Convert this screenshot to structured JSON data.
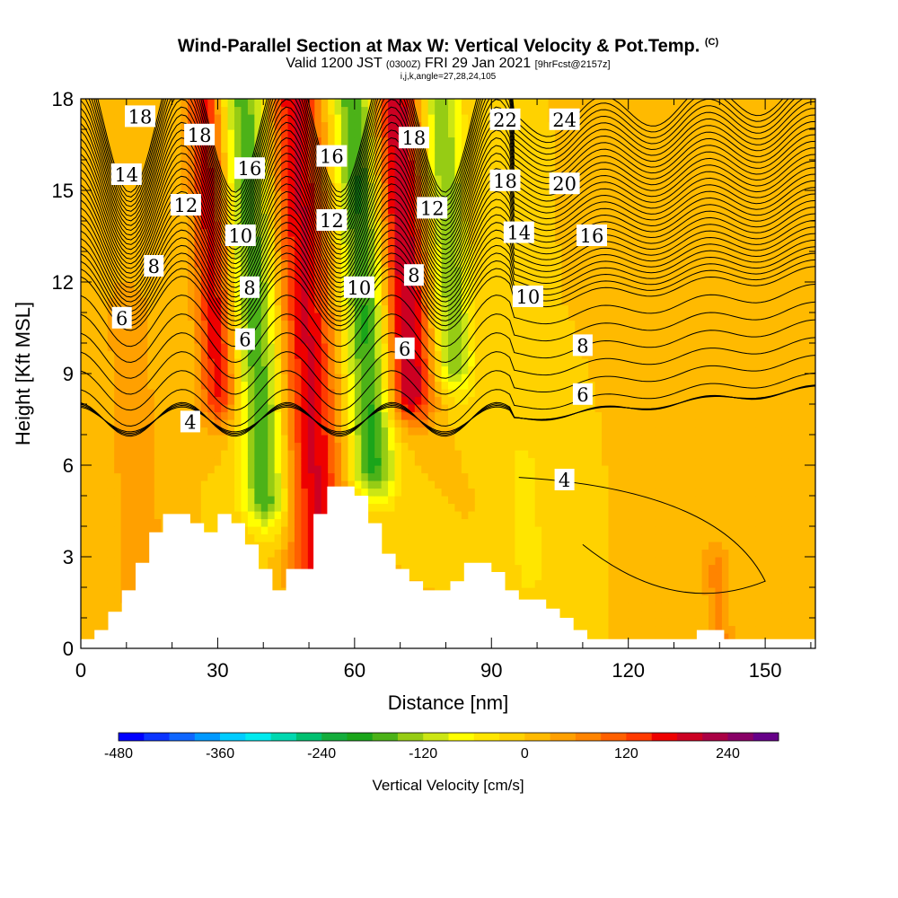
{
  "header": {
    "title": "Wind-Parallel Section at Max W: Vertical Velocity & Pot.Temp.",
    "title_mark": "(C)",
    "subtitle_a": "Valid 1200 JST",
    "subtitle_b": "(0300Z)",
    "subtitle_c": "FRI 29 Jan 2021",
    "subtitle_d": "[9hrFcst@2157z]",
    "note": "i,j,k,angle=27,28,24,105"
  },
  "chart_data": {
    "type": "heatmap",
    "title": "Wind-Parallel Section at Max W: Vertical Velocity & Pot.Temp.",
    "xlabel": "Distance [nm]",
    "ylabel": "Height [Kft MSL]",
    "xlim": [
      0,
      161
    ],
    "ylim": [
      0,
      18
    ],
    "x_ticks": [
      0,
      30,
      60,
      90,
      120,
      150
    ],
    "y_ticks": [
      0,
      3,
      6,
      9,
      12,
      15,
      18
    ],
    "background_velocity_cm_s": 0,
    "updraft_downdraft_bands": [
      {
        "x_center": 10,
        "half_width": 5,
        "y_bottom": 0,
        "y_top": 11,
        "w_cm_s": 60
      },
      {
        "x_center": 29,
        "half_width": 4,
        "y_bottom": 8.5,
        "y_top": 18,
        "w_cm_s": 170
      },
      {
        "x_center": 38,
        "half_width": 5,
        "y_bottom": 5,
        "y_top": 18,
        "w_cm_s": -175
      },
      {
        "x_center": 49,
        "half_width": 6,
        "y_bottom": 2.5,
        "y_top": 18,
        "w_cm_s": 185
      },
      {
        "x_center": 62,
        "half_width": 5,
        "y_bottom": 6,
        "y_top": 18,
        "w_cm_s": -190
      },
      {
        "x_center": 71,
        "half_width": 5,
        "y_bottom": 8.5,
        "y_top": 18,
        "w_cm_s": 215
      },
      {
        "x_center": 81,
        "half_width": 4,
        "y_bottom": 9.5,
        "y_top": 18,
        "w_cm_s": -150
      },
      {
        "x_center": 95,
        "half_width": 3,
        "y_bottom": 3,
        "y_top": 5.5,
        "w_cm_s": -60
      },
      {
        "x_center": 136,
        "half_width": 3,
        "y_bottom": 0,
        "y_top": 2.5,
        "w_cm_s": 70
      }
    ],
    "terrain_height_kft": {
      "x": [
        0,
        3,
        6,
        9,
        12,
        15,
        18,
        21,
        24,
        27,
        30,
        33,
        36,
        39,
        42,
        45,
        48,
        51,
        54,
        57,
        60,
        63,
        66,
        69,
        72,
        75,
        78,
        81,
        84,
        87,
        90,
        93,
        96,
        99,
        102,
        105,
        108,
        111,
        114,
        117,
        120,
        123,
        126,
        129,
        132,
        135,
        138,
        141,
        144,
        147,
        150,
        153,
        156,
        159,
        161
      ],
      "y": [
        0.3,
        0.6,
        1.2,
        1.9,
        2.8,
        3.8,
        4.4,
        4.4,
        4.1,
        3.8,
        4.4,
        4.1,
        3.4,
        2.6,
        1.9,
        2.6,
        2.6,
        4.4,
        5.3,
        5.3,
        5.0,
        4.1,
        3.1,
        2.6,
        2.2,
        1.9,
        1.9,
        2.2,
        2.8,
        2.8,
        2.5,
        1.9,
        1.6,
        1.6,
        1.3,
        1.0,
        0.6,
        0.3,
        0.3,
        0.3,
        0.3,
        0.3,
        0.3,
        0.3,
        0.3,
        0.6,
        0.6,
        0.3,
        0.3,
        0.3,
        0.3,
        0.3,
        0.3,
        0.3,
        0.3
      ]
    },
    "potential_temperature_contours": {
      "levels": [
        4,
        6,
        8,
        10,
        12,
        14,
        16,
        18,
        20,
        22,
        24
      ],
      "labels": [
        {
          "text": "18",
          "x": 13,
          "y": 17.4
        },
        {
          "text": "18",
          "x": 26,
          "y": 16.8
        },
        {
          "text": "14",
          "x": 10,
          "y": 15.5
        },
        {
          "text": "16",
          "x": 37,
          "y": 15.7
        },
        {
          "text": "16",
          "x": 55,
          "y": 16.1
        },
        {
          "text": "18",
          "x": 73,
          "y": 16.7
        },
        {
          "text": "22",
          "x": 93,
          "y": 17.3
        },
        {
          "text": "24",
          "x": 106,
          "y": 17.3
        },
        {
          "text": "18",
          "x": 93,
          "y": 15.3
        },
        {
          "text": "20",
          "x": 106,
          "y": 15.2
        },
        {
          "text": "12",
          "x": 23,
          "y": 14.5
        },
        {
          "text": "12",
          "x": 55,
          "y": 14.0
        },
        {
          "text": "12",
          "x": 77,
          "y": 14.4
        },
        {
          "text": "10",
          "x": 35,
          "y": 13.5
        },
        {
          "text": "14",
          "x": 96,
          "y": 13.6
        },
        {
          "text": "16",
          "x": 112,
          "y": 13.5
        },
        {
          "text": "8",
          "x": 16,
          "y": 12.5
        },
        {
          "text": "8",
          "x": 37,
          "y": 11.8
        },
        {
          "text": "10",
          "x": 61,
          "y": 11.8
        },
        {
          "text": "8",
          "x": 73,
          "y": 12.2
        },
        {
          "text": "10",
          "x": 98,
          "y": 11.5
        },
        {
          "text": "6",
          "x": 9,
          "y": 10.8
        },
        {
          "text": "6",
          "x": 36,
          "y": 10.1
        },
        {
          "text": "6",
          "x": 71,
          "y": 9.8
        },
        {
          "text": "8",
          "x": 110,
          "y": 9.9
        },
        {
          "text": "6",
          "x": 110,
          "y": 8.3
        },
        {
          "text": "4",
          "x": 24,
          "y": 7.4
        },
        {
          "text": "4",
          "x": 106,
          "y": 5.5
        }
      ]
    },
    "colorbar": {
      "label": "Vertical Velocity [cm/s]",
      "min": -480,
      "max": 300,
      "step": 30,
      "tick_values": [
        -480,
        -360,
        -240,
        -120,
        0,
        120,
        240
      ],
      "tick_labels": [
        "-480",
        "-360",
        "-240",
        "-120",
        "0",
        "120",
        "240"
      ],
      "colors": [
        "#0000ff",
        "#0b34ff",
        "#0f66ff",
        "#0099ff",
        "#00ccff",
        "#00eaee",
        "#00d8b0",
        "#00c070",
        "#14ad3c",
        "#1aa51a",
        "#4cb218",
        "#96cc14",
        "#cce614",
        "#ffff00",
        "#ffe600",
        "#ffd200",
        "#ffba00",
        "#ffa000",
        "#ff8400",
        "#ff6000",
        "#ff3a00",
        "#ee0000",
        "#cc0022",
        "#aa0044",
        "#880066",
        "#660088"
      ]
    }
  }
}
